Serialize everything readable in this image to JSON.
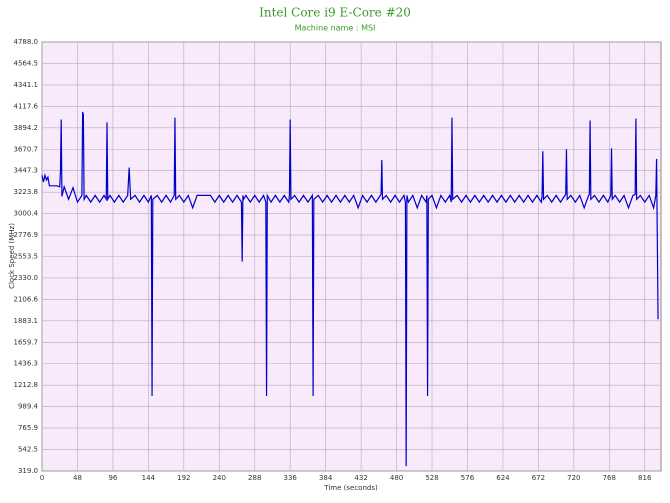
{
  "chart_data": {
    "type": "line",
    "title": "Intel Core i9 E-Core #20",
    "subtitle": "Machine name : MSI",
    "x_label": "Time (seconds)",
    "y_label": "Clock Speed (MHz)",
    "color": "#0000c8",
    "grid": true,
    "xlim": [
      0,
      838
    ],
    "xticks": [
      0,
      48,
      96,
      144,
      192,
      240,
      288,
      336,
      384,
      432,
      480,
      528,
      576,
      624,
      672,
      720,
      768,
      816
    ],
    "ylim": [
      319,
      4788
    ],
    "yticks": [
      {
        "value": 319,
        "label": "319.0"
      },
      542.5,
      765.9,
      989.4,
      1212.8,
      1436.3,
      1659.7,
      1883.1,
      2106.6,
      {
        "value": 2330,
        "label": "2330.0"
      },
      2553.5,
      2776.9,
      3000.4,
      3223.8,
      3447.3,
      3670.7,
      3894.2,
      4117.6,
      4341.1,
      4564.5,
      {
        "value": 4788,
        "label": "4788.0"
      }
    ],
    "x": [
      0,
      2,
      4,
      6,
      8,
      10,
      12,
      16,
      20,
      24,
      25,
      26,
      27,
      30,
      36,
      42,
      48,
      54,
      55,
      56,
      57,
      60,
      66,
      72,
      78,
      84,
      87,
      88,
      89,
      92,
      98,
      104,
      110,
      116,
      118,
      120,
      126,
      132,
      138,
      144,
      148,
      149,
      150,
      156,
      162,
      168,
      174,
      179,
      180,
      181,
      186,
      192,
      198,
      204,
      210,
      216,
      222,
      228,
      234,
      240,
      246,
      252,
      258,
      264,
      270,
      271,
      272,
      273,
      276,
      282,
      288,
      294,
      300,
      303,
      304,
      305,
      310,
      316,
      322,
      328,
      334,
      335,
      336,
      337,
      342,
      348,
      354,
      360,
      366,
      367,
      368,
      374,
      380,
      386,
      392,
      398,
      404,
      410,
      416,
      422,
      428,
      434,
      440,
      446,
      452,
      458,
      459,
      460,
      461,
      466,
      472,
      478,
      484,
      490,
      492,
      493,
      494,
      496,
      502,
      508,
      514,
      520,
      521,
      522,
      523,
      528,
      534,
      540,
      546,
      552,
      554,
      555,
      556,
      562,
      568,
      574,
      580,
      586,
      592,
      598,
      604,
      610,
      616,
      622,
      628,
      634,
      640,
      646,
      652,
      658,
      664,
      670,
      676,
      677,
      678,
      679,
      684,
      690,
      696,
      702,
      708,
      709,
      710,
      711,
      716,
      722,
      728,
      734,
      740,
      741,
      742,
      743,
      748,
      754,
      760,
      766,
      770,
      771,
      772,
      776,
      782,
      788,
      794,
      800,
      803,
      804,
      805,
      810,
      816,
      822,
      828,
      831,
      832,
      834
    ],
    "values": [
      3400,
      3330,
      3400,
      3350,
      3380,
      3290,
      3290,
      3290,
      3290,
      3280,
      3450,
      3980,
      3180,
      3280,
      3150,
      3270,
      3120,
      3190,
      4060,
      4030,
      3150,
      3190,
      3120,
      3190,
      3120,
      3190,
      3150,
      3950,
      3150,
      3190,
      3120,
      3190,
      3120,
      3190,
      3480,
      3150,
      3190,
      3120,
      3190,
      3120,
      3190,
      1100,
      3150,
      3190,
      3120,
      3190,
      3120,
      3190,
      4000,
      3150,
      3190,
      3120,
      3190,
      3060,
      3190,
      3190,
      3190,
      3190,
      3120,
      3190,
      3120,
      3190,
      3120,
      3190,
      3120,
      2500,
      3190,
      3150,
      3190,
      3120,
      3190,
      3120,
      3190,
      3120,
      1100,
      3190,
      3120,
      3190,
      3120,
      3190,
      3120,
      3190,
      3980,
      3150,
      3190,
      3120,
      3190,
      3120,
      3190,
      1100,
      3150,
      3190,
      3120,
      3190,
      3120,
      3190,
      3120,
      3190,
      3120,
      3190,
      3060,
      3190,
      3120,
      3190,
      3120,
      3190,
      3200,
      3560,
      3150,
      3190,
      3120,
      3190,
      3120,
      3190,
      3120,
      370,
      3190,
      3120,
      3190,
      3060,
      3190,
      3120,
      3190,
      1100,
      3150,
      3190,
      3060,
      3190,
      3120,
      3190,
      3120,
      4000,
      3150,
      3190,
      3120,
      3190,
      3120,
      3190,
      3120,
      3190,
      3120,
      3190,
      3120,
      3190,
      3120,
      3190,
      3120,
      3190,
      3120,
      3190,
      3120,
      3190,
      3120,
      3190,
      3650,
      3150,
      3190,
      3120,
      3190,
      3120,
      3190,
      3200,
      3670,
      3150,
      3190,
      3120,
      3190,
      3060,
      3190,
      3200,
      3970,
      3150,
      3190,
      3120,
      3190,
      3120,
      3190,
      3680,
      3150,
      3190,
      3120,
      3190,
      3060,
      3190,
      3200,
      3990,
      3150,
      3190,
      3120,
      3190,
      3060,
      3190,
      3570,
      1900
    ]
  }
}
